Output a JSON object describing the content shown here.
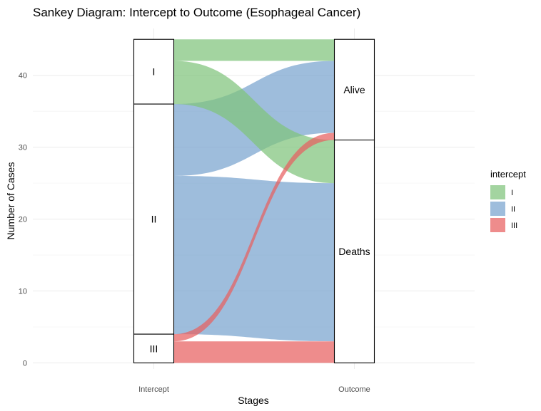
{
  "chart_data": {
    "type": "sankey",
    "title": "Sankey Diagram: Intercept to Outcome (Esophageal Cancer)",
    "xlabel": "Stages",
    "ylabel": "Number of Cases",
    "stages": [
      "Intercept",
      "Outcome"
    ],
    "ylim": [
      0,
      45
    ],
    "yticks": [
      0,
      10,
      20,
      30,
      40
    ],
    "nodes": [
      {
        "stage": "Intercept",
        "label": "I",
        "value": 9
      },
      {
        "stage": "Intercept",
        "label": "II",
        "value": 32
      },
      {
        "stage": "Intercept",
        "label": "III",
        "value": 4
      },
      {
        "stage": "Outcome",
        "label": "Alive",
        "value": 14
      },
      {
        "stage": "Outcome",
        "label": "Deaths",
        "value": 31
      }
    ],
    "flows": [
      {
        "intercept": "I",
        "outcome": "Alive",
        "value": 3
      },
      {
        "intercept": "I",
        "outcome": "Deaths",
        "value": 6
      },
      {
        "intercept": "II",
        "outcome": "Alive",
        "value": 10
      },
      {
        "intercept": "II",
        "outcome": "Deaths",
        "value": 22
      },
      {
        "intercept": "III",
        "outcome": "Alive",
        "value": 1
      },
      {
        "intercept": "III",
        "outcome": "Deaths",
        "value": 3
      }
    ],
    "legend": {
      "title": "intercept",
      "position": "right",
      "entries": [
        {
          "label": "I",
          "color": "#7fc47b"
        },
        {
          "label": "II",
          "color": "#79a4cf"
        },
        {
          "label": "III",
          "color": "#e8605f"
        }
      ]
    },
    "grid": true
  }
}
